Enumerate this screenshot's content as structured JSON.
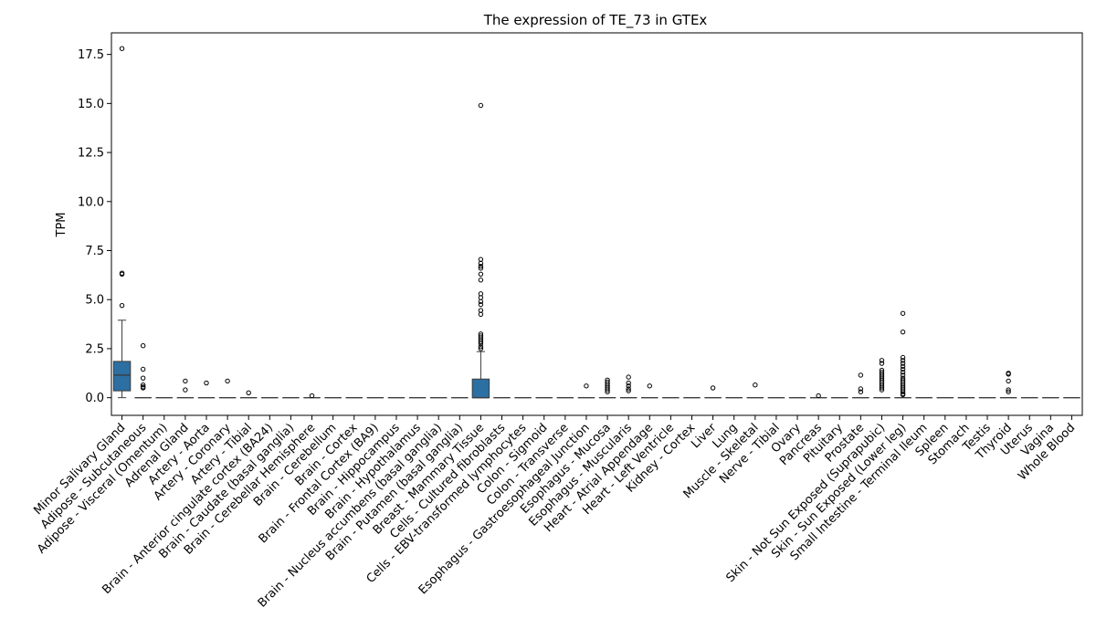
{
  "chart_data": {
    "type": "box",
    "title": "The expression of TE_73 in GTEx",
    "xlabel": "",
    "ylabel": "TPM",
    "ylim": [
      -0.9,
      18.6
    ],
    "yticks": [
      "0.0",
      "2.5",
      "5.0",
      "7.5",
      "10.0",
      "12.5",
      "15.0",
      "17.5"
    ],
    "grid": false,
    "box_color": "#2c6fa3",
    "categories": [
      "Minor Salivary Gland",
      "Adipose - Subcutaneous",
      "Adipose - Visceral (Omentum)",
      "Adrenal Gland",
      "Artery - Aorta",
      "Artery - Coronary",
      "Artery - Tibial",
      "Brain - Anterior cingulate cortex (BA24)",
      "Brain - Caudate (basal ganglia)",
      "Brain - Cerebellar Hemisphere",
      "Brain - Cerebellum",
      "Brain - Cortex",
      "Brain - Frontal Cortex (BA9)",
      "Brain - Hippocampus",
      "Brain - Hypothalamus",
      "Brain - Nucleus accumbens (basal ganglia)",
      "Brain - Putamen (basal ganglia)",
      "Breast - Mammary Tissue",
      "Cells - Cultured fibroblasts",
      "Cells - EBV-transformed lymphocytes",
      "Colon - Sigmoid",
      "Colon - Transverse",
      "Esophagus - Gastroesophageal Junction",
      "Esophagus - Mucosa",
      "Esophagus - Muscularis",
      "Heart - Atrial Appendage",
      "Heart - Left Ventricle",
      "Kidney - Cortex",
      "Liver",
      "Lung",
      "Muscle - Skeletal",
      "Nerve - Tibial",
      "Ovary",
      "Pancreas",
      "Pituitary",
      "Prostate",
      "Skin - Not Sun Exposed (Suprapubic)",
      "Skin - Sun Exposed (Lower leg)",
      "Small Intestine - Terminal Ileum",
      "Spleen",
      "Stomach",
      "Testis",
      "Thyroid",
      "Uterus",
      "Vagina",
      "Whole Blood"
    ],
    "boxes": [
      {
        "q1": 0.35,
        "median": 1.15,
        "q3": 1.85,
        "whislo": 0.0,
        "whishi": 3.95,
        "fliers": [
          17.8,
          6.35,
          6.3,
          4.7
        ]
      },
      {
        "q1": 0,
        "median": 0,
        "q3": 0,
        "whislo": 0,
        "whishi": 0,
        "fliers": [
          2.65,
          1.45,
          1.0,
          0.65,
          0.55,
          0.5
        ]
      },
      {
        "q1": 0,
        "median": 0,
        "q3": 0,
        "whislo": 0,
        "whishi": 0,
        "fliers": []
      },
      {
        "q1": 0,
        "median": 0,
        "q3": 0,
        "whislo": 0,
        "whishi": 0,
        "fliers": [
          0.85,
          0.4
        ]
      },
      {
        "q1": 0,
        "median": 0,
        "q3": 0,
        "whislo": 0,
        "whishi": 0,
        "fliers": [
          0.75
        ]
      },
      {
        "q1": 0,
        "median": 0,
        "q3": 0,
        "whislo": 0,
        "whishi": 0,
        "fliers": [
          0.85
        ]
      },
      {
        "q1": 0,
        "median": 0,
        "q3": 0,
        "whislo": 0,
        "whishi": 0,
        "fliers": [
          0.25
        ]
      },
      {
        "q1": 0,
        "median": 0,
        "q3": 0,
        "whislo": 0,
        "whishi": 0,
        "fliers": []
      },
      {
        "q1": 0,
        "median": 0,
        "q3": 0,
        "whislo": 0,
        "whishi": 0,
        "fliers": []
      },
      {
        "q1": 0,
        "median": 0,
        "q3": 0,
        "whislo": 0,
        "whishi": 0,
        "fliers": [
          0.1
        ]
      },
      {
        "q1": 0,
        "median": 0,
        "q3": 0,
        "whislo": 0,
        "whishi": 0,
        "fliers": []
      },
      {
        "q1": 0,
        "median": 0,
        "q3": 0,
        "whislo": 0,
        "whishi": 0,
        "fliers": []
      },
      {
        "q1": 0,
        "median": 0,
        "q3": 0,
        "whislo": 0,
        "whishi": 0,
        "fliers": []
      },
      {
        "q1": 0,
        "median": 0,
        "q3": 0,
        "whislo": 0,
        "whishi": 0,
        "fliers": []
      },
      {
        "q1": 0,
        "median": 0,
        "q3": 0,
        "whislo": 0,
        "whishi": 0,
        "fliers": []
      },
      {
        "q1": 0,
        "median": 0,
        "q3": 0,
        "whislo": 0,
        "whishi": 0,
        "fliers": []
      },
      {
        "q1": 0,
        "median": 0,
        "q3": 0,
        "whislo": 0,
        "whishi": 0,
        "fliers": []
      },
      {
        "q1": 0.0,
        "median": 0.0,
        "q3": 0.95,
        "whislo": 0.0,
        "whishi": 2.35,
        "fliers": [
          14.9,
          7.05,
          6.85,
          6.7,
          6.6,
          6.3,
          6.0,
          5.3,
          5.1,
          4.9,
          4.75,
          4.45,
          4.25,
          3.25,
          3.15,
          3.05,
          2.95,
          2.85,
          2.75,
          2.6,
          2.5
        ]
      },
      {
        "q1": 0,
        "median": 0,
        "q3": 0,
        "whislo": 0,
        "whishi": 0,
        "fliers": []
      },
      {
        "q1": 0,
        "median": 0,
        "q3": 0,
        "whislo": 0,
        "whishi": 0,
        "fliers": []
      },
      {
        "q1": 0,
        "median": 0,
        "q3": 0,
        "whislo": 0,
        "whishi": 0,
        "fliers": []
      },
      {
        "q1": 0,
        "median": 0,
        "q3": 0,
        "whislo": 0,
        "whishi": 0,
        "fliers": []
      },
      {
        "q1": 0,
        "median": 0,
        "q3": 0,
        "whislo": 0,
        "whishi": 0,
        "fliers": [
          0.6
        ]
      },
      {
        "q1": 0,
        "median": 0,
        "q3": 0,
        "whislo": 0,
        "whishi": 0,
        "fliers": [
          0.9,
          0.8,
          0.7,
          0.6,
          0.5,
          0.4,
          0.3
        ]
      },
      {
        "q1": 0,
        "median": 0,
        "q3": 0,
        "whislo": 0,
        "whishi": 0,
        "fliers": [
          1.05,
          0.75,
          0.6,
          0.45,
          0.35
        ]
      },
      {
        "q1": 0,
        "median": 0,
        "q3": 0,
        "whislo": 0,
        "whishi": 0,
        "fliers": [
          0.6
        ]
      },
      {
        "q1": 0,
        "median": 0,
        "q3": 0,
        "whislo": 0,
        "whishi": 0,
        "fliers": []
      },
      {
        "q1": 0,
        "median": 0,
        "q3": 0,
        "whislo": 0,
        "whishi": 0,
        "fliers": []
      },
      {
        "q1": 0,
        "median": 0,
        "q3": 0,
        "whislo": 0,
        "whishi": 0,
        "fliers": [
          0.5
        ]
      },
      {
        "q1": 0,
        "median": 0,
        "q3": 0,
        "whislo": 0,
        "whishi": 0,
        "fliers": []
      },
      {
        "q1": 0,
        "median": 0,
        "q3": 0,
        "whislo": 0,
        "whishi": 0,
        "fliers": [
          0.65
        ]
      },
      {
        "q1": 0,
        "median": 0,
        "q3": 0,
        "whislo": 0,
        "whishi": 0,
        "fliers": []
      },
      {
        "q1": 0,
        "median": 0,
        "q3": 0,
        "whislo": 0,
        "whishi": 0,
        "fliers": []
      },
      {
        "q1": 0,
        "median": 0,
        "q3": 0,
        "whislo": 0,
        "whishi": 0,
        "fliers": [
          0.1
        ]
      },
      {
        "q1": 0,
        "median": 0,
        "q3": 0,
        "whislo": 0,
        "whishi": 0,
        "fliers": []
      },
      {
        "q1": 0,
        "median": 0,
        "q3": 0,
        "whislo": 0,
        "whishi": 0,
        "fliers": [
          1.15,
          0.45,
          0.3
        ]
      },
      {
        "q1": 0,
        "median": 0,
        "q3": 0,
        "whislo": 0,
        "whishi": 0,
        "fliers": [
          1.9,
          1.75,
          1.4,
          1.3,
          1.2,
          1.1,
          1.0,
          0.9,
          0.8,
          0.7,
          0.6,
          0.5,
          0.4
        ]
      },
      {
        "q1": 0,
        "median": 0,
        "q3": 0,
        "whislo": 0,
        "whishi": 0,
        "fliers": [
          4.3,
          3.35,
          2.05,
          1.9,
          1.75,
          1.6,
          1.45,
          1.3,
          1.15,
          1.0,
          0.9,
          0.8,
          0.7,
          0.6,
          0.5,
          0.4,
          0.3,
          0.2,
          0.15
        ]
      },
      {
        "q1": 0,
        "median": 0,
        "q3": 0,
        "whislo": 0,
        "whishi": 0,
        "fliers": []
      },
      {
        "q1": 0,
        "median": 0,
        "q3": 0,
        "whislo": 0,
        "whishi": 0,
        "fliers": []
      },
      {
        "q1": 0,
        "median": 0,
        "q3": 0,
        "whislo": 0,
        "whishi": 0,
        "fliers": []
      },
      {
        "q1": 0,
        "median": 0,
        "q3": 0,
        "whislo": 0,
        "whishi": 0,
        "fliers": []
      },
      {
        "q1": 0,
        "median": 0,
        "q3": 0,
        "whislo": 0,
        "whishi": 0,
        "fliers": [
          1.25,
          1.2,
          0.85,
          0.4,
          0.3
        ]
      },
      {
        "q1": 0,
        "median": 0,
        "q3": 0,
        "whislo": 0,
        "whishi": 0,
        "fliers": []
      },
      {
        "q1": 0,
        "median": 0,
        "q3": 0,
        "whislo": 0,
        "whishi": 0,
        "fliers": []
      },
      {
        "q1": 0,
        "median": 0,
        "q3": 0,
        "whislo": 0,
        "whishi": 0,
        "fliers": []
      }
    ]
  }
}
